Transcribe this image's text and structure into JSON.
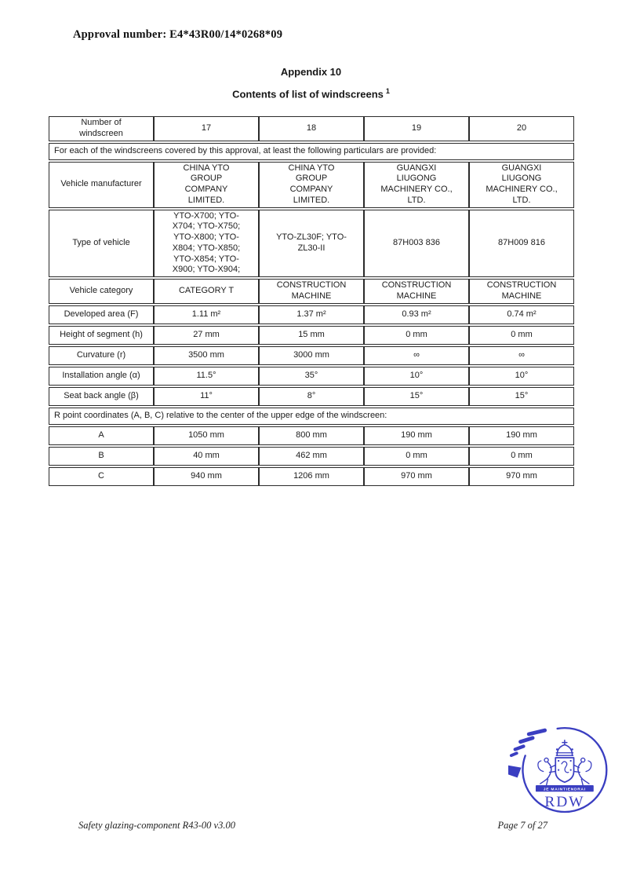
{
  "page": {
    "approval_line": "Approval number: E4*43R00/14*0268*09",
    "appendix_title": "Appendix 10",
    "subtitle": "Contents of list of windscreens",
    "subtitle_sup": "1"
  },
  "table": {
    "sections": [
      {
        "type": "header",
        "label": "Number of windscreen",
        "values": [
          "17",
          "18",
          "19",
          "20"
        ]
      },
      {
        "type": "note",
        "text": "For each of the windscreens covered by this approval, at least the following particulars are provided:"
      },
      {
        "type": "data",
        "label": "Vehicle manufacturer",
        "values": [
          "CHINA YTO\nGROUP\nCOMPANY\nLIMITED.",
          "CHINA YTO\nGROUP\nCOMPANY\nLIMITED.",
          "GUANGXI\nLIUGONG\nMACHINERY CO.,\nLTD.",
          "GUANGXI\nLIUGONG\nMACHINERY CO.,\nLTD."
        ]
      },
      {
        "type": "data",
        "label": "Type of vehicle",
        "values": [
          "YTO-X700; YTO-X704; YTO-X750; YTO-X800; YTO-X804; YTO-X850; YTO-X854; YTO-X900; YTO-X904;",
          "YTO-ZL30F; YTO-ZL30-II",
          "87H003 836",
          "87H009 816"
        ]
      },
      {
        "type": "data",
        "label": "Vehicle category",
        "values": [
          "CATEGORY T",
          "CONSTRUCTION MACHINE",
          "CONSTRUCTION MACHINE",
          "CONSTRUCTION MACHINE"
        ]
      },
      {
        "type": "data",
        "label": "Developed area (F)",
        "values": [
          "1.11 m²",
          "1.37 m²",
          "0.93 m²",
          "0.74 m²"
        ]
      },
      {
        "type": "data",
        "label": "Height of segment (h)",
        "values": [
          "27 mm",
          "15 mm",
          "0 mm",
          "0 mm"
        ]
      },
      {
        "type": "data",
        "label": "Curvature (r)",
        "values": [
          "3500 mm",
          "3000 mm",
          "∞",
          "∞"
        ]
      },
      {
        "type": "data",
        "label": "Installation angle (α)",
        "values": [
          "11.5°",
          "35°",
          "10°",
          "10°"
        ]
      },
      {
        "type": "data",
        "label": "Seat back angle (β)",
        "values": [
          "11°",
          "8°",
          "15°",
          "15°"
        ]
      },
      {
        "type": "note",
        "text": "R point coordinates (A, B, C) relative to the center of the upper edge of the windscreen:"
      },
      {
        "type": "data",
        "label": "A",
        "values": [
          "1050 mm",
          "800 mm",
          "190 mm",
          "190 mm"
        ]
      },
      {
        "type": "data",
        "label": "B",
        "values": [
          "40 mm",
          "462 mm",
          "0 mm",
          "0 mm"
        ]
      },
      {
        "type": "data",
        "label": "C",
        "values": [
          "940 mm",
          "1206 mm",
          "970 mm",
          "970 mm"
        ]
      }
    ]
  },
  "logo": {
    "name": "RDW",
    "motto": "JE MAINTIENDRAI",
    "color": "#3a3ec1"
  },
  "footer": {
    "left": "Safety glazing-component R43-00 v3.00",
    "right": "Page 7 of 27"
  }
}
